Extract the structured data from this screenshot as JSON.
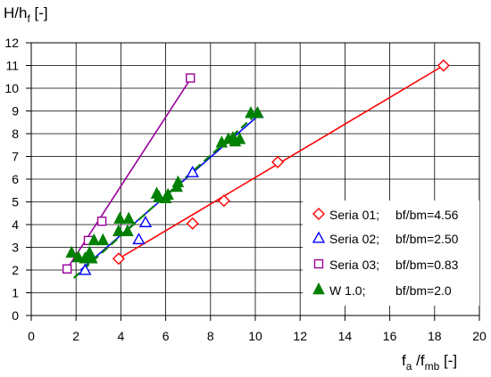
{
  "chart_data": {
    "type": "scatter",
    "title": "",
    "xlabel": {
      "main": "f",
      "sub1": "a",
      "mid": " /f",
      "sub2": "mb",
      "unit": " [-]"
    },
    "ylabel": {
      "main": "H/h",
      "sub": "f",
      "unit": " [-]"
    },
    "xlim": [
      0,
      20
    ],
    "ylim": [
      0,
      12
    ],
    "xticks": [
      0,
      2,
      4,
      6,
      8,
      10,
      12,
      14,
      16,
      18,
      20
    ],
    "yticks": [
      0,
      1,
      2,
      3,
      4,
      5,
      6,
      7,
      8,
      9,
      10,
      11,
      12
    ],
    "grid": true,
    "legend_position": "bottom-right",
    "series": [
      {
        "name": "Seria 01;",
        "param": "bf/bm=4.56",
        "color": "#ff0000",
        "marker": "diamond",
        "points": [
          [
            3.9,
            2.5
          ],
          [
            7.2,
            4.05
          ],
          [
            8.6,
            5.05
          ],
          [
            11.0,
            6.75
          ],
          [
            18.4,
            11.0
          ]
        ],
        "fit": {
          "from": [
            3.9,
            2.5
          ],
          "to": [
            18.4,
            11.0
          ],
          "dash": false
        }
      },
      {
        "name": "Seria 02;",
        "param": "bf/bm=2.50",
        "color": "#0000ff",
        "marker": "triangle-open",
        "points": [
          [
            2.4,
            2.0
          ],
          [
            4.8,
            3.35
          ],
          [
            5.1,
            4.1
          ],
          [
            7.2,
            6.3
          ],
          [
            10.1,
            8.9
          ]
        ],
        "fit": {
          "from": [
            2.2,
            2.0
          ],
          "to": [
            10.2,
            8.85
          ],
          "dash": false
        }
      },
      {
        "name": "Seria 03;",
        "param": "bf/bm=0.83",
        "color": "#990099",
        "marker": "square",
        "points": [
          [
            1.6,
            2.05
          ],
          [
            2.55,
            3.3
          ],
          [
            3.15,
            4.15
          ],
          [
            7.1,
            10.45
          ]
        ],
        "fit": {
          "from": [
            1.6,
            2.05
          ],
          "to": [
            7.1,
            10.4
          ],
          "dash": false
        }
      },
      {
        "name": "W 1.0;",
        "param": "bf/bm=2.0",
        "color": "#008000",
        "marker": "triangle-filled",
        "points": [
          [
            1.8,
            2.75
          ],
          [
            2.1,
            2.55
          ],
          [
            2.4,
            2.5
          ],
          [
            2.6,
            2.75
          ],
          [
            2.7,
            2.5
          ],
          [
            2.8,
            3.3
          ],
          [
            3.2,
            3.3
          ],
          [
            3.9,
            3.7
          ],
          [
            3.95,
            4.25
          ],
          [
            4.3,
            3.7
          ],
          [
            4.35,
            4.25
          ],
          [
            5.6,
            5.35
          ],
          [
            5.7,
            5.2
          ],
          [
            6.0,
            5.15
          ],
          [
            6.1,
            5.3
          ],
          [
            6.5,
            5.65
          ],
          [
            6.55,
            5.85
          ],
          [
            8.5,
            7.6
          ],
          [
            8.8,
            7.75
          ],
          [
            9.0,
            7.8
          ],
          [
            9.1,
            7.65
          ],
          [
            9.3,
            7.75
          ],
          [
            9.8,
            8.9
          ],
          [
            10.1,
            8.9
          ]
        ],
        "fit": {
          "from": [
            1.9,
            1.65
          ],
          "to": [
            10.1,
            8.9
          ],
          "dash": true
        }
      }
    ]
  }
}
